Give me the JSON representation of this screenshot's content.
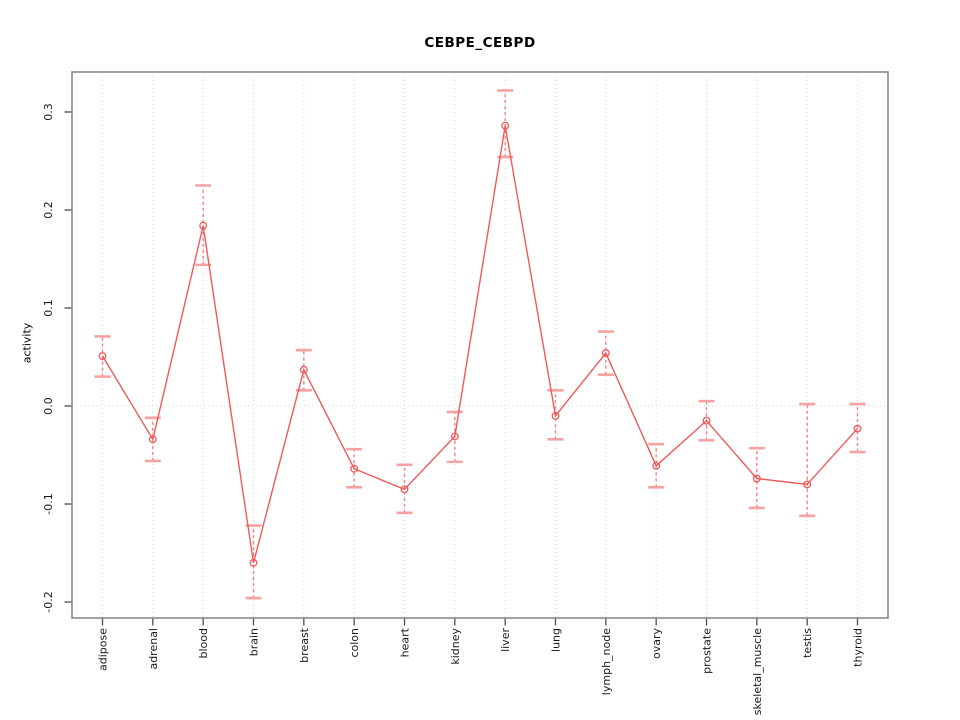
{
  "figure": {
    "background_color": "#ffffff",
    "border_color": "#8c8c8c",
    "tick_color": "#4d4d4d",
    "gridline_color": "#d4d4d4"
  },
  "chart_data": {
    "type": "line",
    "title": "CEBPE_CEBPD",
    "xlabel": "",
    "ylabel": "activity",
    "legend": "none",
    "grid": "dotted vertical gridline at each category; dotted horizontal line at y=0",
    "marker": "open-circle",
    "error_bars": "dashed vertical line with solid caps",
    "line_color": "#f15959",
    "errorbar_color": "#f28080",
    "errorbar_cap_color": "#f6a2a2",
    "ylim": [
      -0.2163,
      0.3408
    ],
    "yticks": [
      -0.2,
      -0.1,
      0.0,
      0.1,
      0.2,
      0.3
    ],
    "ytick_labels": [
      "-0.2",
      "-0.1",
      "0.0",
      "0.1",
      "0.2",
      "0.3"
    ],
    "categories": [
      "adipose",
      "adrenal",
      "blood",
      "brain",
      "breast",
      "colon",
      "heart",
      "kidney",
      "liver",
      "lung",
      "lymph_node",
      "ovary",
      "prostate",
      "skeletal_muscle",
      "testis",
      "thyroid"
    ],
    "series": [
      {
        "name": "activity",
        "values": [
          0.051,
          -0.034,
          0.184,
          -0.16,
          0.037,
          -0.064,
          -0.085,
          -0.031,
          0.286,
          -0.01,
          0.054,
          -0.061,
          -0.015,
          -0.074,
          -0.08,
          -0.023
        ],
        "err_low": [
          0.03,
          -0.056,
          0.144,
          -0.196,
          0.016,
          -0.083,
          -0.109,
          -0.057,
          0.254,
          -0.034,
          0.032,
          -0.083,
          -0.035,
          -0.104,
          -0.112,
          -0.047
        ],
        "err_high": [
          0.071,
          -0.012,
          0.225,
          -0.122,
          0.057,
          -0.044,
          -0.06,
          -0.006,
          0.322,
          0.016,
          0.076,
          -0.039,
          0.005,
          -0.043,
          0.002,
          0.002
        ]
      }
    ]
  }
}
